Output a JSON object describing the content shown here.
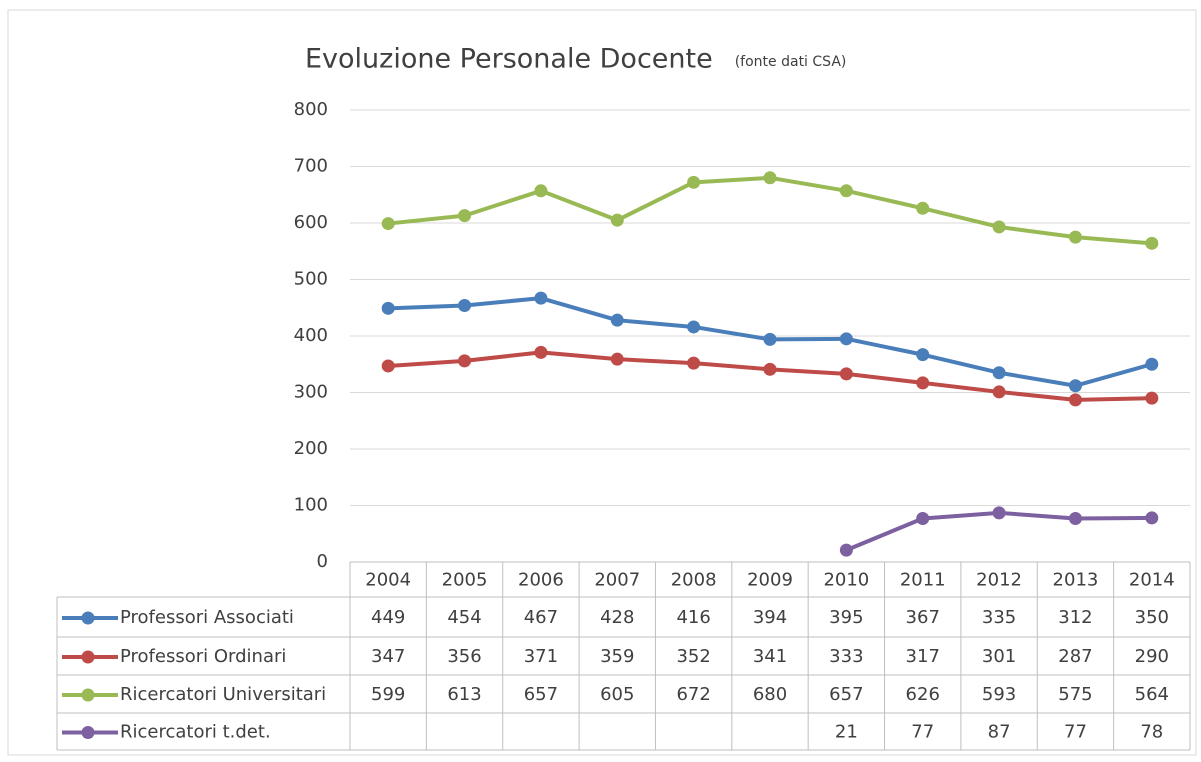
{
  "chart_data": {
    "type": "line",
    "title": "Evoluzione Personale Docente",
    "subtitle": "(fonte dati CSA)",
    "categories": [
      "2004",
      "2005",
      "2006",
      "2007",
      "2008",
      "2009",
      "2010",
      "2011",
      "2012",
      "2013",
      "2014"
    ],
    "series": [
      {
        "name": "Professori Associati",
        "color": "#4a7ebb",
        "values": [
          449,
          454,
          467,
          428,
          416,
          394,
          395,
          367,
          335,
          312,
          350
        ]
      },
      {
        "name": "Professori Ordinari",
        "color": "#be4b48",
        "values": [
          347,
          356,
          371,
          359,
          352,
          341,
          333,
          317,
          301,
          287,
          290
        ]
      },
      {
        "name": "Ricercatori Universitari",
        "color": "#98b954",
        "values": [
          599,
          613,
          657,
          605,
          672,
          680,
          657,
          626,
          593,
          575,
          564
        ]
      },
      {
        "name": "Ricercatori  t.det.",
        "color": "#7d60a0",
        "values": [
          null,
          null,
          null,
          null,
          null,
          null,
          21,
          77,
          87,
          77,
          78
        ]
      }
    ],
    "ylim": [
      0,
      800
    ],
    "yticks": [
      0,
      100,
      200,
      300,
      400,
      500,
      600,
      700,
      800
    ],
    "grid": true,
    "data_table": true
  }
}
